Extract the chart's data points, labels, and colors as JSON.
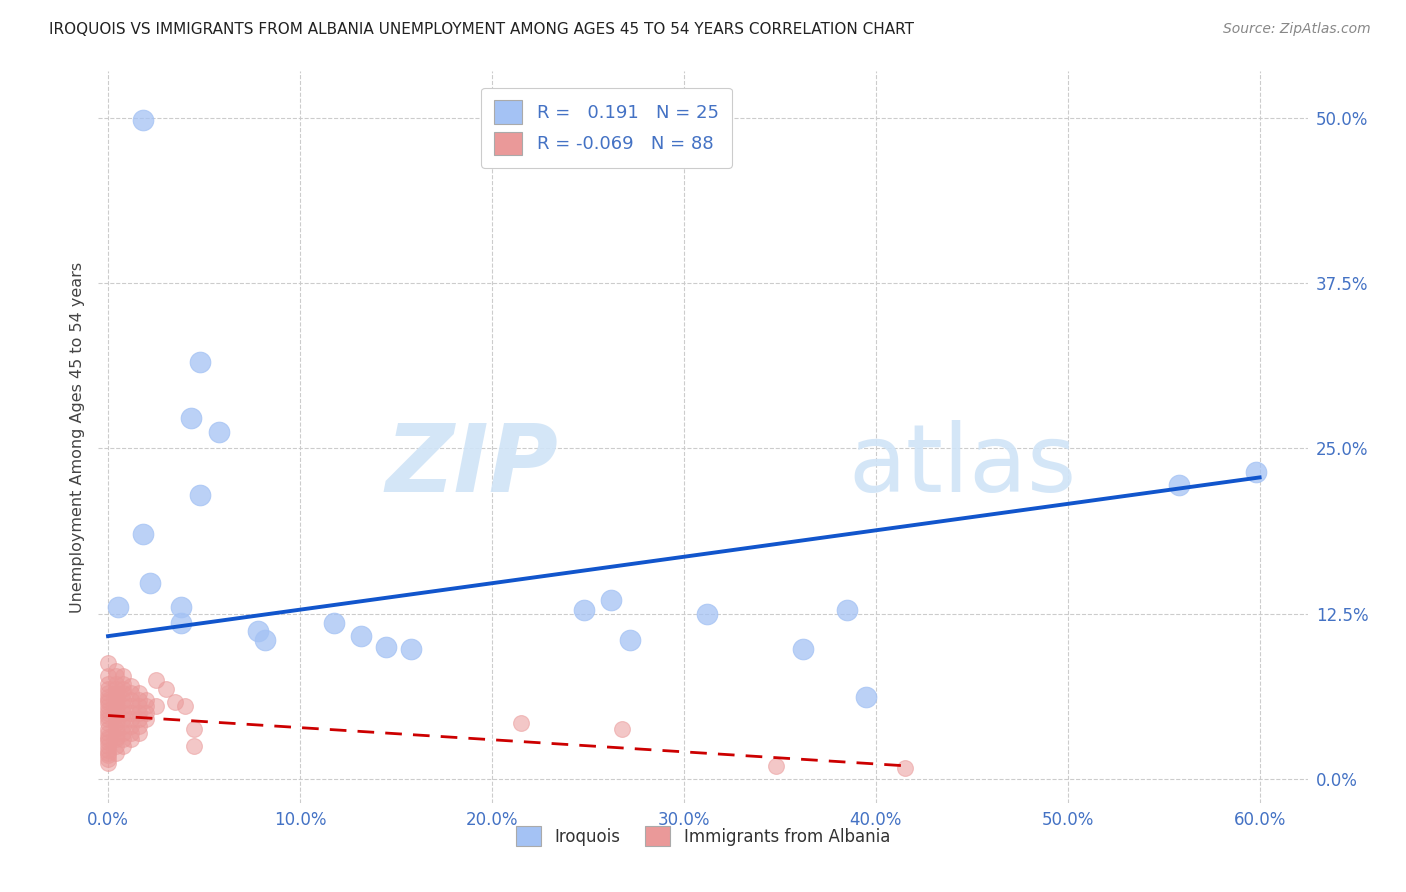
{
  "title": "IROQUOIS VS IMMIGRANTS FROM ALBANIA UNEMPLOYMENT AMONG AGES 45 TO 54 YEARS CORRELATION CHART",
  "source": "Source: ZipAtlas.com",
  "xlabel_ticks": [
    "0.0%",
    "10.0%",
    "20.0%",
    "30.0%",
    "40.0%",
    "50.0%",
    "60.0%"
  ],
  "xlabel_vals": [
    0.0,
    0.1,
    0.2,
    0.3,
    0.4,
    0.5,
    0.6
  ],
  "ylabel": "Unemployment Among Ages 45 to 54 years",
  "ylabel_ticks_right": [
    "0.0%",
    "12.5%",
    "25.0%",
    "37.5%",
    "50.0%"
  ],
  "ylabel_vals": [
    0.0,
    0.125,
    0.25,
    0.375,
    0.5
  ],
  "xlim": [
    -0.005,
    0.625
  ],
  "ylim": [
    -0.018,
    0.535
  ],
  "blue_color": "#a4c2f4",
  "pink_color": "#ea9999",
  "blue_line_color": "#1155cc",
  "pink_line_color": "#cc0000",
  "iroquois_scatter": [
    [
      0.018,
      0.498
    ],
    [
      0.048,
      0.315
    ],
    [
      0.043,
      0.273
    ],
    [
      0.058,
      0.262
    ],
    [
      0.048,
      0.215
    ],
    [
      0.018,
      0.185
    ],
    [
      0.022,
      0.148
    ],
    [
      0.038,
      0.13
    ],
    [
      0.005,
      0.13
    ],
    [
      0.038,
      0.118
    ],
    [
      0.078,
      0.112
    ],
    [
      0.082,
      0.105
    ],
    [
      0.118,
      0.118
    ],
    [
      0.132,
      0.108
    ],
    [
      0.145,
      0.1
    ],
    [
      0.158,
      0.098
    ],
    [
      0.248,
      0.128
    ],
    [
      0.262,
      0.135
    ],
    [
      0.272,
      0.105
    ],
    [
      0.312,
      0.125
    ],
    [
      0.362,
      0.098
    ],
    [
      0.385,
      0.128
    ],
    [
      0.395,
      0.062
    ],
    [
      0.558,
      0.222
    ],
    [
      0.598,
      0.232
    ]
  ],
  "albania_scatter": [
    [
      0.0,
      0.088
    ],
    [
      0.0,
      0.078
    ],
    [
      0.0,
      0.072
    ],
    [
      0.0,
      0.068
    ],
    [
      0.0,
      0.065
    ],
    [
      0.0,
      0.062
    ],
    [
      0.0,
      0.06
    ],
    [
      0.0,
      0.058
    ],
    [
      0.0,
      0.055
    ],
    [
      0.0,
      0.052
    ],
    [
      0.0,
      0.05
    ],
    [
      0.0,
      0.048
    ],
    [
      0.0,
      0.045
    ],
    [
      0.0,
      0.042
    ],
    [
      0.0,
      0.038
    ],
    [
      0.0,
      0.035
    ],
    [
      0.0,
      0.032
    ],
    [
      0.0,
      0.03
    ],
    [
      0.0,
      0.028
    ],
    [
      0.0,
      0.025
    ],
    [
      0.0,
      0.022
    ],
    [
      0.0,
      0.02
    ],
    [
      0.0,
      0.018
    ],
    [
      0.0,
      0.015
    ],
    [
      0.0,
      0.012
    ],
    [
      0.004,
      0.082
    ],
    [
      0.004,
      0.078
    ],
    [
      0.004,
      0.072
    ],
    [
      0.004,
      0.068
    ],
    [
      0.004,
      0.065
    ],
    [
      0.004,
      0.062
    ],
    [
      0.004,
      0.06
    ],
    [
      0.004,
      0.058
    ],
    [
      0.004,
      0.055
    ],
    [
      0.004,
      0.052
    ],
    [
      0.004,
      0.05
    ],
    [
      0.004,
      0.048
    ],
    [
      0.004,
      0.045
    ],
    [
      0.004,
      0.042
    ],
    [
      0.004,
      0.038
    ],
    [
      0.004,
      0.035
    ],
    [
      0.004,
      0.032
    ],
    [
      0.004,
      0.03
    ],
    [
      0.004,
      0.025
    ],
    [
      0.004,
      0.02
    ],
    [
      0.008,
      0.078
    ],
    [
      0.008,
      0.072
    ],
    [
      0.008,
      0.068
    ],
    [
      0.008,
      0.065
    ],
    [
      0.008,
      0.06
    ],
    [
      0.008,
      0.055
    ],
    [
      0.008,
      0.05
    ],
    [
      0.008,
      0.045
    ],
    [
      0.008,
      0.04
    ],
    [
      0.008,
      0.035
    ],
    [
      0.008,
      0.03
    ],
    [
      0.008,
      0.025
    ],
    [
      0.012,
      0.07
    ],
    [
      0.012,
      0.065
    ],
    [
      0.012,
      0.06
    ],
    [
      0.012,
      0.055
    ],
    [
      0.012,
      0.05
    ],
    [
      0.012,
      0.045
    ],
    [
      0.012,
      0.04
    ],
    [
      0.012,
      0.035
    ],
    [
      0.012,
      0.03
    ],
    [
      0.016,
      0.065
    ],
    [
      0.016,
      0.06
    ],
    [
      0.016,
      0.055
    ],
    [
      0.016,
      0.05
    ],
    [
      0.016,
      0.045
    ],
    [
      0.016,
      0.04
    ],
    [
      0.016,
      0.035
    ],
    [
      0.02,
      0.06
    ],
    [
      0.02,
      0.055
    ],
    [
      0.02,
      0.05
    ],
    [
      0.02,
      0.045
    ],
    [
      0.025,
      0.075
    ],
    [
      0.025,
      0.055
    ],
    [
      0.03,
      0.068
    ],
    [
      0.035,
      0.058
    ],
    [
      0.04,
      0.055
    ],
    [
      0.045,
      0.038
    ],
    [
      0.045,
      0.025
    ],
    [
      0.215,
      0.042
    ],
    [
      0.268,
      0.038
    ],
    [
      0.348,
      0.01
    ],
    [
      0.415,
      0.008
    ]
  ],
  "blue_trendline": [
    [
      0.0,
      0.108
    ],
    [
      0.6,
      0.228
    ]
  ],
  "pink_trendline": [
    [
      0.0,
      0.048
    ],
    [
      0.415,
      0.01
    ]
  ]
}
